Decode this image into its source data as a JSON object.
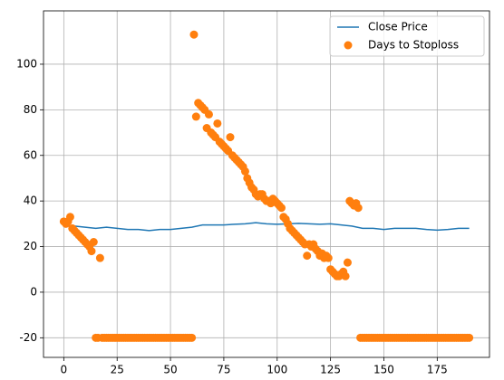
{
  "chart_data": {
    "type": "line+scatter",
    "xlim": [
      -9.5,
      199.5
    ],
    "xticks": [
      0,
      25,
      50,
      75,
      100,
      125,
      150,
      175
    ],
    "ylim": [
      -28.6,
      123.4
    ],
    "yticks": [
      -20,
      0,
      20,
      40,
      60,
      80,
      100
    ],
    "grid": true,
    "legend": "upper right",
    "series": [
      {
        "name": "Close Price",
        "type": "line",
        "color": "#1f77b4",
        "x": [
          0,
          5,
          10,
          15,
          20,
          25,
          30,
          35,
          40,
          45,
          50,
          55,
          60,
          65,
          70,
          75,
          80,
          85,
          90,
          95,
          100,
          105,
          110,
          115,
          120,
          125,
          130,
          135,
          140,
          145,
          150,
          155,
          160,
          165,
          170,
          175,
          180,
          185,
          190
        ],
        "values": [
          29,
          29,
          28.5,
          28,
          28.5,
          28,
          27.5,
          27.5,
          27,
          27.5,
          27.5,
          28,
          28.5,
          29.5,
          29.5,
          29.5,
          29.8,
          30,
          30.5,
          30,
          29.8,
          30,
          30.2,
          30,
          29.8,
          30,
          29.5,
          29,
          28,
          28,
          27.5,
          28,
          28,
          28,
          27.5,
          27.2,
          27.5,
          28,
          28
        ]
      },
      {
        "name": "Days to Stoploss",
        "type": "scatter",
        "color": "#ff7f0e",
        "x": [
          0,
          1,
          2,
          3,
          4,
          5,
          6,
          7,
          8,
          9,
          10,
          11,
          12,
          13,
          14,
          15,
          16,
          17,
          18,
          19,
          20,
          21,
          22,
          23,
          24,
          25,
          26,
          27,
          28,
          29,
          30,
          31,
          32,
          33,
          34,
          35,
          36,
          37,
          38,
          39,
          40,
          41,
          42,
          43,
          44,
          45,
          46,
          47,
          48,
          49,
          50,
          51,
          52,
          53,
          54,
          55,
          56,
          57,
          58,
          59,
          60,
          61,
          62,
          63,
          64,
          65,
          66,
          67,
          68,
          69,
          70,
          71,
          72,
          73,
          74,
          75,
          76,
          77,
          78,
          79,
          80,
          81,
          82,
          83,
          84,
          85,
          86,
          87,
          88,
          89,
          90,
          91,
          92,
          93,
          94,
          95,
          96,
          97,
          98,
          99,
          100,
          101,
          102,
          103,
          104,
          105,
          106,
          107,
          108,
          109,
          110,
          111,
          112,
          113,
          114,
          115,
          116,
          117,
          118,
          119,
          120,
          121,
          122,
          123,
          124,
          125,
          126,
          127,
          128,
          129,
          130,
          131,
          132,
          133,
          134,
          135,
          136,
          137,
          138,
          139,
          140,
          141,
          142,
          143,
          144,
          145,
          146,
          147,
          148,
          149,
          150,
          151,
          152,
          153,
          154,
          155,
          156,
          157,
          158,
          159,
          160,
          161,
          162,
          163,
          164,
          165,
          166,
          167,
          168,
          169,
          170,
          171,
          172,
          173,
          174,
          175,
          176,
          177,
          178,
          179,
          180,
          181,
          182,
          183,
          184,
          185,
          186,
          187,
          188,
          189,
          190
        ],
        "values": [
          31,
          30,
          31,
          33,
          28,
          27,
          26,
          25,
          24,
          23,
          22,
          21,
          20,
          18,
          22,
          -20,
          -20,
          15,
          -20,
          -20,
          -20,
          -20,
          -20,
          -20,
          -20,
          -20,
          -20,
          -20,
          -20,
          -20,
          -20,
          -20,
          -20,
          -20,
          -20,
          -20,
          -20,
          -20,
          -20,
          -20,
          -20,
          -20,
          -20,
          -20,
          -20,
          -20,
          -20,
          -20,
          -20,
          -20,
          -20,
          -20,
          -20,
          -20,
          -20,
          -20,
          -20,
          -20,
          -20,
          -20,
          -20,
          113,
          77,
          83,
          82,
          81,
          80,
          72,
          78,
          70,
          69,
          68,
          74,
          66,
          65,
          64,
          63,
          62,
          68,
          60,
          59,
          58,
          57,
          56,
          55,
          53,
          50,
          48,
          46,
          45,
          43,
          42,
          43,
          43,
          41,
          40,
          40,
          39,
          41,
          40,
          39,
          38,
          37,
          33,
          32,
          30,
          28,
          27,
          26,
          25,
          24,
          23,
          22,
          21,
          16,
          21,
          20,
          21,
          19,
          18,
          16,
          17,
          15,
          16,
          15,
          10,
          9,
          8,
          7,
          7,
          8,
          9,
          7,
          13,
          40,
          39,
          38,
          39,
          37,
          -20,
          -20,
          -20,
          -20,
          -20,
          -20,
          -20,
          -20,
          -20,
          -20,
          -20,
          -20,
          -20,
          -20,
          -20,
          -20,
          -20,
          -20,
          -20,
          -20,
          -20,
          -20,
          -20,
          -20,
          -20,
          -20,
          -20,
          -20,
          -20,
          -20,
          -20,
          -20,
          -20,
          -20,
          -20,
          -20,
          -20,
          -20,
          -20,
          -20,
          -20,
          -20,
          -20,
          -20,
          -20,
          -20,
          -20,
          -20,
          -20,
          -20,
          -20,
          -20
        ]
      }
    ]
  }
}
